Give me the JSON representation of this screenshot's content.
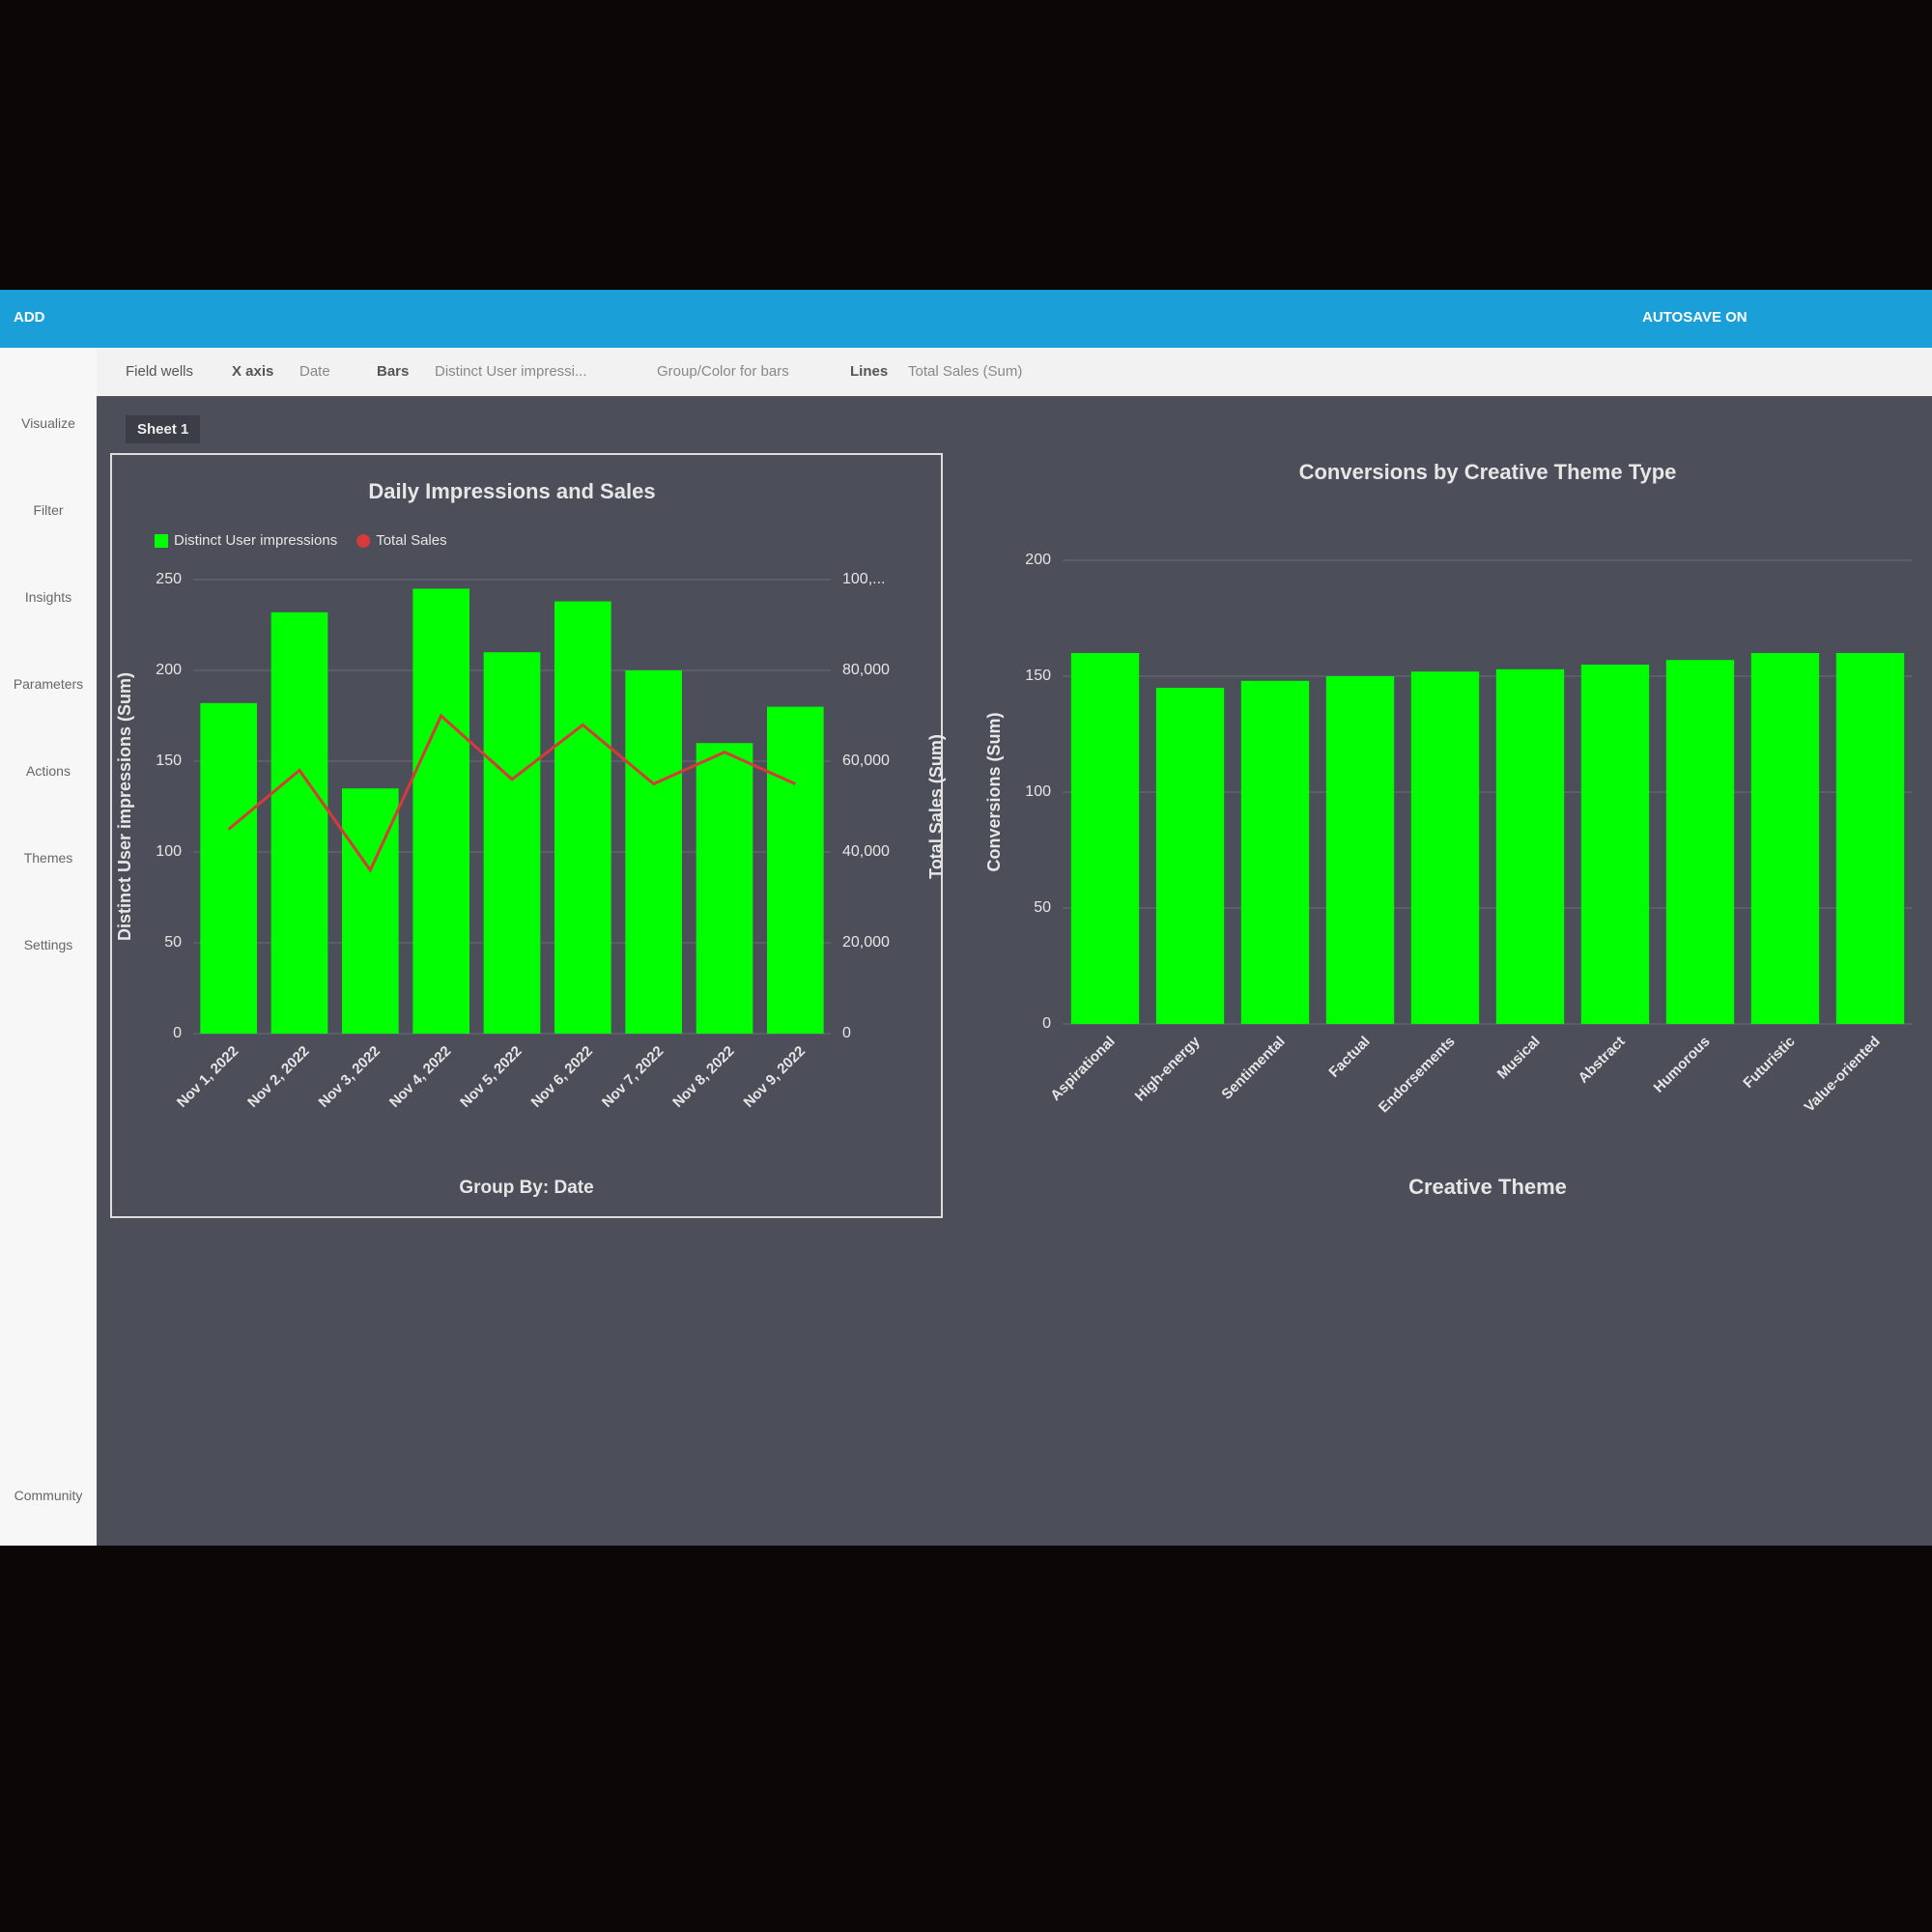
{
  "header": {
    "autosave": "AUTOSAVE ON"
  },
  "toolbar": {
    "add": "ADD",
    "field_wells": "Field wells",
    "x_axis": "X axis",
    "x_axis_field": "Date",
    "bars": "Bars",
    "bars_field": "Distinct User impressi...",
    "group_color": "Group/Color for bars",
    "lines": "Lines",
    "lines_field": "Total Sales (Sum)"
  },
  "sidebar": [
    "Visualize",
    "Filter",
    "Insights",
    "Parameters",
    "Actions",
    "Themes",
    "Settings",
    "Community"
  ],
  "sheet_tab": "Sheet 1",
  "group_by": "Group By: Date",
  "chart_data": [
    {
      "type": "combo",
      "title": "Daily Impressions and Sales",
      "categories": [
        "Nov 1, 2022",
        "Nov 2, 2022",
        "Nov 3, 2022",
        "Nov 4, 2022",
        "Nov 5, 2022",
        "Nov 6, 2022",
        "Nov 7, 2022",
        "Nov 8, 2022",
        "Nov 9, 2022"
      ],
      "series": [
        {
          "name": "Distinct User impressions",
          "type": "bar",
          "color": "#00ff00",
          "values": [
            182,
            232,
            135,
            245,
            210,
            238,
            200,
            160,
            180
          ]
        },
        {
          "name": "Total Sales",
          "type": "line",
          "axis": "y2",
          "color": "#d63a3a",
          "values": [
            45000,
            58000,
            36000,
            70000,
            56000,
            68000,
            55000,
            62000,
            55000
          ]
        }
      ],
      "y_label": "Distinct User impressions (Sum)",
      "y2_label": "Total Sales (Sum)",
      "ylim": [
        0,
        250
      ],
      "yticks": [
        0,
        50,
        100,
        150,
        200,
        250
      ],
      "y2lim": [
        0,
        100000
      ],
      "y2ticks": [
        0,
        {
          "value": 20000,
          "label": "20,000"
        },
        {
          "value": 40000,
          "label": "40,000"
        },
        {
          "value": 60000,
          "label": "60,000"
        },
        {
          "value": 80000,
          "label": "80,000"
        },
        {
          "value": 100000,
          "label": "100,..."
        }
      ],
      "grid": true,
      "legend": "top-left"
    },
    {
      "type": "bar",
      "title": "Conversions by Creative Theme Type",
      "categories": [
        "Aspirational",
        "High-energy",
        "Sentimental",
        "Factual",
        "Endorsements",
        "Musical",
        "Abstract",
        "Humorous",
        "Futuristic",
        "Value-oriented"
      ],
      "values": [
        160,
        145,
        148,
        150,
        152,
        153,
        155,
        157,
        160,
        160
      ],
      "color": "#00ff00",
      "y_label": "Conversions (Sum)",
      "x_label": "Creative Theme",
      "ylim": [
        0,
        200
      ],
      "yticks": [
        0,
        50,
        100,
        150,
        200
      ],
      "grid": true
    }
  ]
}
